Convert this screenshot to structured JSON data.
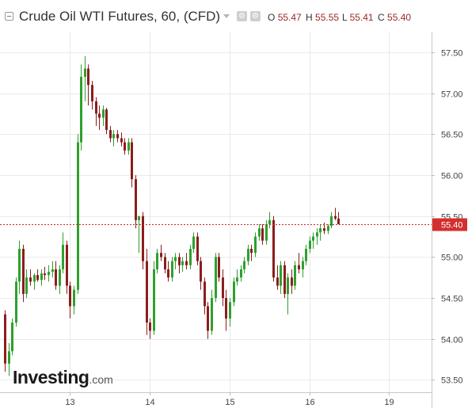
{
  "header": {
    "title": "Crude Oil WTI Futures, 60, (CFD)",
    "ohlc": [
      {
        "key": "O",
        "value": "55.47"
      },
      {
        "key": "H",
        "value": "55.55"
      },
      {
        "key": "L",
        "value": "55.41"
      },
      {
        "key": "C",
        "value": "55.40"
      }
    ],
    "icons": [
      "collapse-icon",
      "chevron-down-icon",
      "settings-icon",
      "gear-icon"
    ]
  },
  "logo": {
    "brand": "Investing",
    "suffix": ".com"
  },
  "colors": {
    "up": "#2ea02e",
    "down": "#8c1d1d",
    "last_price_line": "#c62828",
    "last_price_label_bg": "#d32f2f",
    "grid": "#eaeaea",
    "axis_text": "#444444"
  },
  "chart_data": {
    "type": "candlestick",
    "title": "Crude Oil WTI Futures, 60, (CFD)",
    "ylim": [
      53.35,
      57.75
    ],
    "yticks": [
      "53.50",
      "54.00",
      "54.50",
      "55.00",
      "55.50",
      "56.00",
      "56.50",
      "57.00",
      "57.50"
    ],
    "xticks": [
      {
        "label": "13",
        "bar": 18
      },
      {
        "label": "14",
        "bar": 40
      },
      {
        "label": "15",
        "bar": 62
      },
      {
        "label": "16",
        "bar": 84
      },
      {
        "label": "19",
        "bar": 106
      }
    ],
    "last_price": {
      "value": 55.4,
      "label": "55.40"
    },
    "candles": [
      [
        54.3,
        54.35,
        53.6,
        53.7
      ],
      [
        53.7,
        53.95,
        53.55,
        53.85
      ],
      [
        53.85,
        54.25,
        53.8,
        54.2
      ],
      [
        54.2,
        54.75,
        54.15,
        54.7
      ],
      [
        54.7,
        55.2,
        54.55,
        55.1
      ],
      [
        55.1,
        55.15,
        54.45,
        54.55
      ],
      [
        54.55,
        54.85,
        54.5,
        54.75
      ],
      [
        54.75,
        54.85,
        54.65,
        54.7
      ],
      [
        54.7,
        54.8,
        54.6,
        54.78
      ],
      [
        54.78,
        54.85,
        54.7,
        54.72
      ],
      [
        54.72,
        54.85,
        54.65,
        54.8
      ],
      [
        54.8,
        54.88,
        54.72,
        54.78
      ],
      [
        54.78,
        54.9,
        54.7,
        54.82
      ],
      [
        54.82,
        54.95,
        54.75,
        54.85
      ],
      [
        54.85,
        54.95,
        54.6,
        54.65
      ],
      [
        54.65,
        54.9,
        54.55,
        54.85
      ],
      [
        54.85,
        55.3,
        54.8,
        55.15
      ],
      [
        55.15,
        55.2,
        54.55,
        54.65
      ],
      [
        54.65,
        54.7,
        54.25,
        54.4
      ],
      [
        54.4,
        54.65,
        54.3,
        54.6
      ],
      [
        54.6,
        56.5,
        54.55,
        56.4
      ],
      [
        56.4,
        57.35,
        56.3,
        57.2
      ],
      [
        57.2,
        57.45,
        56.9,
        57.3
      ],
      [
        57.3,
        57.35,
        56.85,
        57.1
      ],
      [
        57.1,
        57.15,
        56.8,
        56.9
      ],
      [
        56.9,
        56.95,
        56.6,
        56.75
      ],
      [
        56.75,
        56.85,
        56.55,
        56.7
      ],
      [
        56.7,
        56.85,
        56.6,
        56.8
      ],
      [
        56.8,
        56.82,
        56.5,
        56.55
      ],
      [
        56.55,
        56.6,
        56.4,
        56.45
      ],
      [
        56.45,
        56.55,
        56.35,
        56.5
      ],
      [
        56.5,
        56.55,
        56.4,
        56.45
      ],
      [
        56.45,
        56.52,
        56.35,
        56.4
      ],
      [
        56.4,
        56.45,
        56.25,
        56.3
      ],
      [
        56.3,
        56.45,
        56.25,
        56.4
      ],
      [
        56.4,
        56.45,
        55.85,
        55.95
      ],
      [
        55.95,
        56.0,
        55.35,
        55.45
      ],
      [
        55.45,
        55.5,
        55.05,
        55.5
      ],
      [
        55.5,
        55.55,
        54.85,
        54.95
      ],
      [
        54.95,
        55.1,
        54.05,
        54.2
      ],
      [
        54.2,
        54.25,
        54.0,
        54.1
      ],
      [
        54.1,
        54.95,
        54.05,
        54.85
      ],
      [
        54.85,
        55.1,
        54.8,
        55.05
      ],
      [
        55.05,
        55.15,
        54.95,
        55.0
      ],
      [
        55.0,
        55.05,
        54.8,
        54.85
      ],
      [
        54.85,
        54.95,
        54.7,
        54.75
      ],
      [
        54.75,
        55.0,
        54.7,
        54.95
      ],
      [
        54.95,
        55.05,
        54.85,
        55.0
      ],
      [
        55.0,
        55.05,
        54.8,
        54.9
      ],
      [
        54.9,
        55.0,
        54.82,
        54.95
      ],
      [
        54.95,
        55.05,
        54.85,
        54.9
      ],
      [
        54.9,
        55.15,
        54.85,
        55.1
      ],
      [
        55.1,
        55.3,
        55.05,
        55.25
      ],
      [
        55.25,
        55.3,
        54.9,
        54.95
      ],
      [
        54.95,
        55.0,
        54.6,
        54.7
      ],
      [
        54.7,
        54.75,
        54.3,
        54.4
      ],
      [
        54.4,
        54.45,
        54.0,
        54.1
      ],
      [
        54.1,
        54.6,
        54.05,
        54.5
      ],
      [
        54.5,
        55.05,
        54.45,
        55.0
      ],
      [
        55.0,
        55.05,
        54.7,
        54.75
      ],
      [
        54.75,
        54.85,
        54.4,
        54.5
      ],
      [
        54.5,
        54.6,
        54.1,
        54.25
      ],
      [
        54.25,
        54.5,
        54.15,
        54.45
      ],
      [
        54.45,
        54.75,
        54.4,
        54.7
      ],
      [
        54.7,
        54.85,
        54.65,
        54.75
      ],
      [
        54.75,
        54.9,
        54.7,
        54.85
      ],
      [
        54.85,
        55.0,
        54.8,
        54.95
      ],
      [
        54.95,
        55.15,
        54.9,
        55.1
      ],
      [
        55.1,
        55.15,
        54.95,
        55.05
      ],
      [
        55.05,
        55.3,
        55.0,
        55.25
      ],
      [
        55.25,
        55.4,
        55.2,
        55.35
      ],
      [
        55.35,
        55.4,
        55.15,
        55.2
      ],
      [
        55.2,
        55.45,
        55.15,
        55.4
      ],
      [
        55.4,
        55.55,
        55.35,
        55.45
      ],
      [
        55.45,
        55.5,
        54.7,
        54.75
      ],
      [
        54.75,
        54.9,
        54.6,
        54.65
      ],
      [
        54.65,
        54.95,
        54.55,
        54.9
      ],
      [
        54.9,
        54.95,
        54.5,
        54.55
      ],
      [
        54.55,
        54.8,
        54.3,
        54.75
      ],
      [
        54.75,
        54.85,
        54.55,
        54.65
      ],
      [
        54.65,
        54.95,
        54.6,
        54.9
      ],
      [
        54.9,
        55.05,
        54.8,
        54.85
      ],
      [
        54.85,
        55.0,
        54.75,
        54.95
      ],
      [
        54.95,
        55.15,
        54.9,
        55.1
      ],
      [
        55.1,
        55.25,
        55.05,
        55.2
      ],
      [
        55.2,
        55.3,
        55.1,
        55.25
      ],
      [
        55.25,
        55.35,
        55.15,
        55.3
      ],
      [
        55.3,
        55.4,
        55.2,
        55.35
      ],
      [
        55.35,
        55.42,
        55.28,
        55.32
      ],
      [
        55.32,
        55.4,
        55.28,
        55.38
      ],
      [
        55.38,
        55.55,
        55.35,
        55.5
      ],
      [
        55.5,
        55.6,
        55.45,
        55.47
      ],
      [
        55.47,
        55.55,
        55.41,
        55.4
      ]
    ]
  }
}
